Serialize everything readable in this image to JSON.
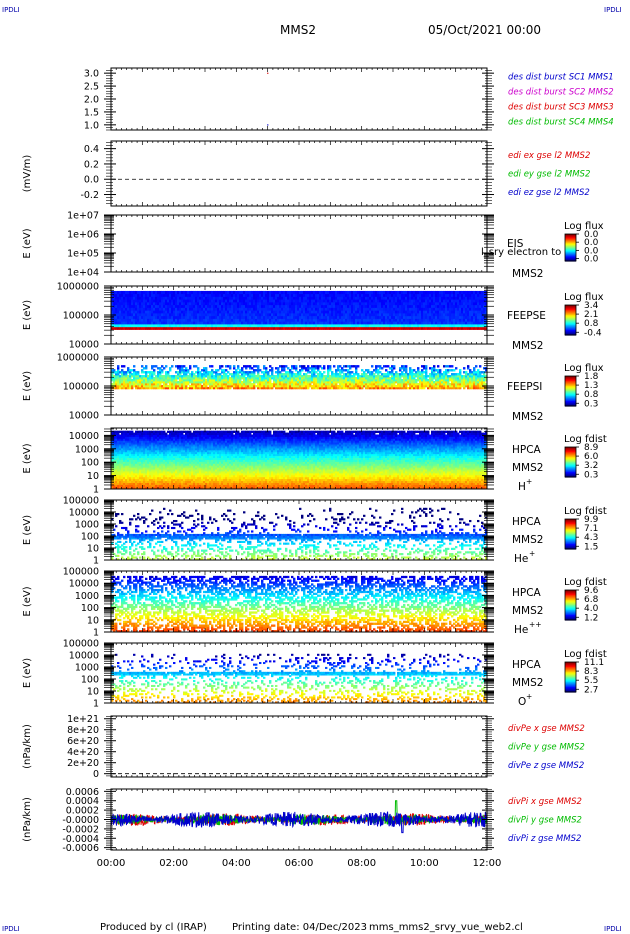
{
  "corner": {
    "top_left": "IPDLI",
    "top_right": "IPDLI",
    "bottom_left": "IPDLI",
    "bottom_right": "IPDLI"
  },
  "header": {
    "title": "MMS2",
    "date": "05/Oct/2021 00:00"
  },
  "footer": {
    "producer": "Produced by cl (IRAP)",
    "printing_date": "Printing date: 04/Dec/2023",
    "file": "mms_mms2_srvy_vue_web2.cl"
  },
  "colors": {
    "mms1": "#0000cc",
    "mms2": "#cc00cc",
    "mms3": "#dd0000",
    "mms4": "#00bb00"
  },
  "chart_data": [
    {
      "id": "des-dist-burst",
      "type": "scatter",
      "ylim": [
        0.8,
        3.2
      ],
      "yticks": [
        "3.0",
        "2.5",
        "2.0",
        "1.5",
        "1.0"
      ],
      "ytick_values": [
        3.0,
        2.5,
        2.0,
        1.5,
        1.0
      ],
      "legend": [
        {
          "label": "des dist burst SC1 MMS1",
          "color": "#0000cc"
        },
        {
          "label": "des dist burst SC2 MMS2",
          "color": "#cc00cc"
        },
        {
          "label": "des dist burst SC3 MMS3",
          "color": "#dd0000"
        },
        {
          "label": "des dist burst SC4 MMS4",
          "color": "#00bb00"
        }
      ],
      "points": [
        {
          "hour": 5.0,
          "y": 3.0,
          "color": "#dd0000"
        },
        {
          "hour": 5.0,
          "y": 1.0,
          "color": "#0000cc"
        }
      ]
    },
    {
      "id": "edi-e-gse",
      "type": "line",
      "ylabel": "(mV/m)",
      "ylim": [
        -0.35,
        0.5
      ],
      "yticks": [
        "0.4",
        "0.2",
        "0.0",
        "-0.2"
      ],
      "ytick_values": [
        0.4,
        0.2,
        0.0,
        -0.2
      ],
      "legend": [
        {
          "label": "edi ex gse l2 MMS2",
          "color": "#dd0000"
        },
        {
          "label": "edi ey gse l2 MMS2",
          "color": "#00bb00"
        },
        {
          "label": "edi ez gse l2 MMS2",
          "color": "#0000cc"
        }
      ],
      "zero_line": 0.0
    },
    {
      "id": "eis-electron",
      "type": "heatmap",
      "ylabel": "E (eV)",
      "yticks": [
        "1e+07",
        "1e+06",
        "1e+05",
        "1e+04"
      ],
      "ytick_values": [
        7,
        6,
        5,
        4
      ],
      "ylim": [
        4,
        7
      ],
      "instrument": [
        "EIS",
        "MMS2"
      ],
      "overlay_text": "l_sry electron to",
      "colorbar": {
        "title": "Log flux",
        "labels": [
          "0.0",
          "0.0",
          "0.0",
          "0.0"
        ]
      },
      "pattern": "empty"
    },
    {
      "id": "feepse",
      "type": "heatmap",
      "ylabel": "E (eV)",
      "yticks": [
        "1000000",
        "100000",
        "10000"
      ],
      "ytick_values": [
        6,
        5,
        4
      ],
      "ylim": [
        4,
        6
      ],
      "instrument": [
        "FEEPSE",
        "MMS2"
      ],
      "colorbar": {
        "title": "Log flux",
        "labels": [
          "3.4",
          "2.1",
          "0.8",
          "-0.4"
        ]
      },
      "pattern": "feepse"
    },
    {
      "id": "feepsi",
      "type": "heatmap",
      "ylabel": "E (eV)",
      "yticks": [
        "1000000",
        "100000",
        "10000"
      ],
      "ytick_values": [
        6,
        5,
        4
      ],
      "ylim": [
        4,
        6
      ],
      "instrument": [
        "FEEPSI",
        "MMS2"
      ],
      "colorbar": {
        "title": "Log flux",
        "labels": [
          "1.8",
          "1.3",
          "0.8",
          "0.3"
        ]
      },
      "pattern": "feepsi"
    },
    {
      "id": "hpca-h",
      "type": "heatmap",
      "ylabel": "E (eV)",
      "yticks": [
        "10000",
        "1000",
        "100",
        "10",
        "1"
      ],
      "ytick_values": [
        4,
        3,
        2,
        1,
        0
      ],
      "ylim": [
        0,
        4.55
      ],
      "instrument": [
        "HPCA",
        "MMS2"
      ],
      "species": "H",
      "species_sup": "+",
      "colorbar": {
        "title": "Log fdist",
        "labels": [
          "8.9",
          "6.0",
          "3.2",
          "0.3"
        ]
      },
      "pattern": "hpca_h"
    },
    {
      "id": "hpca-he",
      "type": "heatmap",
      "ylabel": "E (eV)",
      "yticks": [
        "100000",
        "10000",
        "1000",
        "100",
        "10",
        "1"
      ],
      "ytick_values": [
        5,
        4,
        3,
        2,
        1,
        0
      ],
      "ylim": [
        0,
        5
      ],
      "instrument": [
        "HPCA",
        "MMS2"
      ],
      "species": "He",
      "species_sup": "+",
      "colorbar": {
        "title": "Log fdist",
        "labels": [
          "9.9",
          "7.1",
          "4.3",
          "1.5"
        ]
      },
      "pattern": "hpca_he"
    },
    {
      "id": "hpca-hepp",
      "type": "heatmap",
      "ylabel": "E (eV)",
      "yticks": [
        "100000",
        "10000",
        "1000",
        "100",
        "10",
        "1"
      ],
      "ytick_values": [
        5,
        4,
        3,
        2,
        1,
        0
      ],
      "ylim": [
        0,
        5
      ],
      "instrument": [
        "HPCA",
        "MMS2"
      ],
      "species": "He",
      "species_sup": "++",
      "colorbar": {
        "title": "Log fdist",
        "labels": [
          "9.6",
          "6.8",
          "4.0",
          "1.2"
        ]
      },
      "pattern": "hpca_hepp"
    },
    {
      "id": "hpca-o",
      "type": "heatmap",
      "ylabel": "E (eV)",
      "yticks": [
        "100000",
        "10000",
        "1000",
        "100",
        "10",
        "1"
      ],
      "ytick_values": [
        5,
        4,
        3,
        2,
        1,
        0
      ],
      "ylim": [
        0,
        5
      ],
      "instrument": [
        "HPCA",
        "MMS2"
      ],
      "species": "O",
      "species_sup": "+",
      "colorbar": {
        "title": "Log fdist",
        "labels": [
          "11.1",
          "8.3",
          "5.5",
          "2.7"
        ]
      },
      "pattern": "hpca_o"
    },
    {
      "id": "divpe",
      "type": "line",
      "ylabel": "(nPa/km)",
      "ylim": [
        -6e+19,
        1.05e+21
      ],
      "yticks": [
        "1e+21",
        "8e+20",
        "6e+20",
        "4e+20",
        "2e+20",
        "0"
      ],
      "ytick_values": [
        1e+21,
        8e+20,
        6e+20,
        4e+20,
        2e+20,
        0
      ],
      "legend": [
        {
          "label": "divPe x gse MMS2",
          "color": "#dd0000"
        },
        {
          "label": "divPe y gse MMS2",
          "color": "#00bb00"
        },
        {
          "label": "divPe z gse MMS2",
          "color": "#0000cc"
        }
      ],
      "zero_line": 0.0
    },
    {
      "id": "divpi",
      "type": "line",
      "ylabel": "(nPa/km)",
      "ylim": [
        -0.00065,
        0.00065
      ],
      "yticks": [
        "0.0006",
        "0.0004",
        "0.0002",
        "-0.0000",
        "-0.0002",
        "-0.0004",
        "-0.0006"
      ],
      "ytick_values": [
        0.0006,
        0.0004,
        0.0002,
        0,
        -0.0002,
        -0.0004,
        -0.0006
      ],
      "legend": [
        {
          "label": "divPi x gse MMS2",
          "color": "#dd0000"
        },
        {
          "label": "divPi y gse MMS2",
          "color": "#00bb00"
        },
        {
          "label": "divPi z gse MMS2",
          "color": "#0000cc"
        }
      ],
      "noise": true
    }
  ],
  "xaxis": {
    "ticks": [
      "00:00",
      "02:00",
      "04:00",
      "06:00",
      "08:00",
      "10:00",
      "12:00"
    ],
    "tick_hours": [
      0,
      2,
      4,
      6,
      8,
      10,
      12
    ],
    "xlim": [
      0,
      12
    ]
  }
}
